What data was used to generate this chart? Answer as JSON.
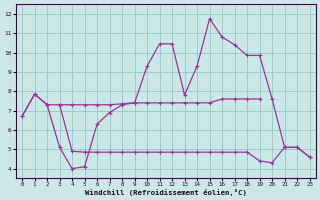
{
  "xlabel": "Windchill (Refroidissement éolien,°C)",
  "bg_color": "#cce8e6",
  "grid_color": "#99cccc",
  "line_color": "#993399",
  "xlim": [
    -0.5,
    23.5
  ],
  "ylim": [
    3.5,
    12.5
  ],
  "yticks": [
    4,
    5,
    6,
    7,
    8,
    9,
    10,
    11,
    12
  ],
  "xticks": [
    0,
    1,
    2,
    3,
    4,
    5,
    6,
    7,
    8,
    9,
    10,
    11,
    12,
    13,
    14,
    15,
    16,
    17,
    18,
    19,
    20,
    21,
    22,
    23
  ],
  "s1_x": [
    0,
    1,
    2,
    3,
    4,
    5,
    6,
    7,
    8,
    9,
    10,
    11,
    12,
    13,
    14,
    15,
    16,
    17,
    18,
    19
  ],
  "s1_y": [
    6.7,
    7.85,
    7.3,
    7.3,
    7.3,
    7.3,
    7.3,
    7.3,
    7.35,
    7.4,
    7.4,
    7.4,
    7.4,
    7.4,
    7.4,
    7.4,
    7.6,
    7.6,
    7.6,
    7.6
  ],
  "s2_x": [
    0,
    1,
    2,
    3,
    4,
    5,
    6,
    7,
    8,
    9,
    10,
    11,
    12,
    13,
    14,
    15,
    16,
    17,
    18,
    19,
    20,
    21,
    22,
    23
  ],
  "s2_y": [
    6.7,
    7.85,
    7.3,
    5.1,
    4.0,
    4.1,
    6.3,
    6.9,
    7.3,
    7.4,
    9.3,
    10.45,
    10.45,
    7.8,
    9.3,
    11.75,
    10.8,
    10.4,
    9.85,
    9.85,
    7.6,
    5.1,
    5.1,
    4.6
  ],
  "s3_x": [
    3,
    4,
    5,
    6,
    7,
    8,
    9,
    10,
    11,
    12,
    13,
    14,
    15,
    16,
    17,
    18,
    19,
    20,
    21,
    22,
    23
  ],
  "s3_y": [
    7.3,
    4.9,
    4.85,
    4.85,
    4.85,
    4.85,
    4.85,
    4.85,
    4.85,
    4.85,
    4.85,
    4.85,
    4.85,
    4.85,
    4.85,
    4.85,
    4.4,
    4.3,
    5.1,
    5.1,
    4.6
  ]
}
